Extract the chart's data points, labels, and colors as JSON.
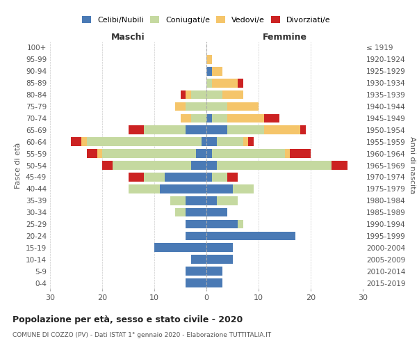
{
  "age_groups": [
    "0-4",
    "5-9",
    "10-14",
    "15-19",
    "20-24",
    "25-29",
    "30-34",
    "35-39",
    "40-44",
    "45-49",
    "50-54",
    "55-59",
    "60-64",
    "65-69",
    "70-74",
    "75-79",
    "80-84",
    "85-89",
    "90-94",
    "95-99",
    "100+"
  ],
  "birth_years": [
    "2015-2019",
    "2010-2014",
    "2005-2009",
    "2000-2004",
    "1995-1999",
    "1990-1994",
    "1985-1989",
    "1980-1984",
    "1975-1979",
    "1970-1974",
    "1965-1969",
    "1960-1964",
    "1955-1959",
    "1950-1954",
    "1945-1949",
    "1940-1944",
    "1935-1939",
    "1930-1934",
    "1925-1929",
    "1920-1924",
    "≤ 1919"
  ],
  "maschi": {
    "celibi": [
      4,
      4,
      3,
      10,
      4,
      4,
      4,
      4,
      9,
      8,
      3,
      2,
      1,
      4,
      0,
      0,
      0,
      0,
      0,
      0,
      0
    ],
    "coniugati": [
      0,
      0,
      0,
      0,
      0,
      0,
      2,
      3,
      6,
      4,
      15,
      18,
      22,
      8,
      3,
      4,
      3,
      0,
      0,
      0,
      0
    ],
    "vedovi": [
      0,
      0,
      0,
      0,
      0,
      0,
      0,
      0,
      0,
      0,
      0,
      1,
      1,
      0,
      2,
      2,
      1,
      0,
      0,
      0,
      0
    ],
    "divorziati": [
      0,
      0,
      0,
      0,
      0,
      0,
      0,
      0,
      0,
      3,
      2,
      2,
      2,
      3,
      0,
      0,
      1,
      0,
      0,
      0,
      0
    ]
  },
  "femmine": {
    "nubili": [
      3,
      3,
      5,
      5,
      17,
      6,
      4,
      2,
      5,
      1,
      2,
      1,
      2,
      4,
      1,
      0,
      0,
      0,
      1,
      0,
      0
    ],
    "coniugate": [
      0,
      0,
      0,
      0,
      0,
      1,
      0,
      4,
      4,
      3,
      22,
      14,
      5,
      7,
      3,
      4,
      3,
      1,
      0,
      0,
      0
    ],
    "vedove": [
      0,
      0,
      0,
      0,
      0,
      0,
      0,
      0,
      0,
      0,
      0,
      1,
      1,
      7,
      7,
      6,
      4,
      5,
      2,
      1,
      0
    ],
    "divorziate": [
      0,
      0,
      0,
      0,
      0,
      0,
      0,
      0,
      0,
      2,
      3,
      4,
      1,
      1,
      3,
      0,
      0,
      1,
      0,
      0,
      0
    ]
  },
  "colors": {
    "celibi": "#4a7ab5",
    "coniugati": "#c5d9a0",
    "vedovi": "#f5c56a",
    "divorziati": "#cc2222"
  },
  "xlim": 30,
  "title": "Popolazione per età, sesso e stato civile - 2020",
  "subtitle": "COMUNE DI COZZO (PV) - Dati ISTAT 1° gennaio 2020 - Elaborazione TUTTITALIA.IT",
  "ylabel_left": "Fasce di età",
  "ylabel_right": "Anni di nascita",
  "xlabel_left": "Maschi",
  "xlabel_right": "Femmine",
  "bg_color": "#ffffff",
  "grid_color": "#cccccc"
}
